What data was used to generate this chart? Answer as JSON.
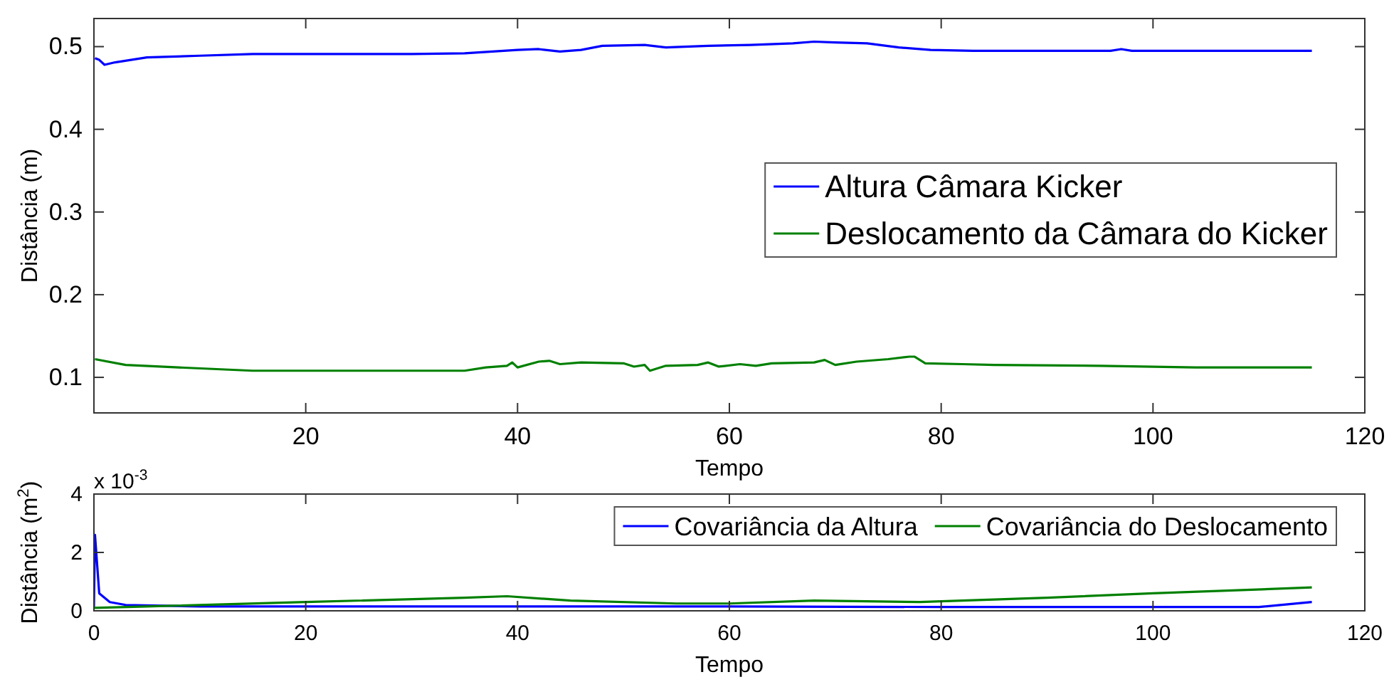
{
  "chart_data": [
    {
      "type": "line",
      "xlabel": "Tempo",
      "ylabel": "Distância (m)",
      "xlim": [
        0,
        120
      ],
      "ylim": [
        0.057,
        0.534
      ],
      "xticks": [
        20,
        40,
        60,
        80,
        100,
        120
      ],
      "yticks": [
        0.1,
        0.2,
        0.3,
        0.4,
        0.5
      ],
      "legend": "right",
      "grid": false,
      "series": [
        {
          "name": "Altura Câmara Kicker",
          "color": "#0000ff",
          "x": [
            0.1,
            0.5,
            1,
            2,
            5,
            10,
            15,
            30,
            35,
            40,
            42,
            44,
            46,
            48,
            52,
            54,
            58,
            62,
            66,
            68,
            70,
            73,
            76,
            79,
            83,
            96,
            97,
            98,
            115
          ],
          "values": [
            0.486,
            0.484,
            0.478,
            0.481,
            0.487,
            0.489,
            0.491,
            0.491,
            0.492,
            0.496,
            0.497,
            0.494,
            0.496,
            0.501,
            0.502,
            0.499,
            0.501,
            0.502,
            0.504,
            0.506,
            0.505,
            0.504,
            0.499,
            0.496,
            0.495,
            0.495,
            0.497,
            0.495,
            0.495
          ]
        },
        {
          "name": "Deslocamento da Câmara do Kicker",
          "color": "#008000",
          "x": [
            0.1,
            3,
            8,
            15,
            35,
            37,
            39,
            39.5,
            40,
            42,
            43,
            44,
            46,
            50,
            51,
            52,
            52.5,
            54,
            57,
            58,
            59,
            61,
            62.5,
            64,
            68,
            69,
            70,
            72,
            75,
            77,
            77.5,
            78.5,
            82,
            85,
            95,
            104,
            115
          ],
          "values": [
            0.122,
            0.115,
            0.112,
            0.108,
            0.108,
            0.112,
            0.114,
            0.118,
            0.112,
            0.119,
            0.12,
            0.116,
            0.118,
            0.117,
            0.113,
            0.115,
            0.108,
            0.114,
            0.115,
            0.118,
            0.113,
            0.116,
            0.114,
            0.117,
            0.118,
            0.121,
            0.115,
            0.119,
            0.122,
            0.125,
            0.125,
            0.117,
            0.116,
            0.115,
            0.114,
            0.112,
            0.112
          ]
        }
      ]
    },
    {
      "type": "line",
      "xlabel": "Tempo",
      "ylabel": "Distância (m$^{2}$)",
      "annotations": [
        "x 10$^{-3}$"
      ],
      "xlim": [
        0,
        120
      ],
      "ylim": [
        0,
        4
      ],
      "xticks": [
        0,
        20,
        40,
        60,
        80,
        100,
        120
      ],
      "yticks": [
        0,
        2,
        4
      ],
      "legend": "top right",
      "grid": false,
      "series": [
        {
          "name": "Covariância da Altura",
          "color": "#0000ff",
          "x": [
            0,
            0.1,
            0.5,
            1.5,
            3,
            10,
            20,
            40,
            60,
            80,
            100,
            110,
            115
          ],
          "values": [
            0.1,
            2.6,
            0.6,
            0.3,
            0.2,
            0.15,
            0.15,
            0.15,
            0.15,
            0.13,
            0.13,
            0.13,
            0.3
          ]
        },
        {
          "name": "Covariância do Deslocamento",
          "color": "#008000",
          "x": [
            0,
            5,
            20,
            35,
            39,
            45,
            55,
            60,
            68,
            78,
            90,
            100,
            115
          ],
          "values": [
            0.1,
            0.15,
            0.3,
            0.45,
            0.5,
            0.35,
            0.25,
            0.25,
            0.35,
            0.3,
            0.45,
            0.6,
            0.8
          ]
        }
      ]
    }
  ]
}
